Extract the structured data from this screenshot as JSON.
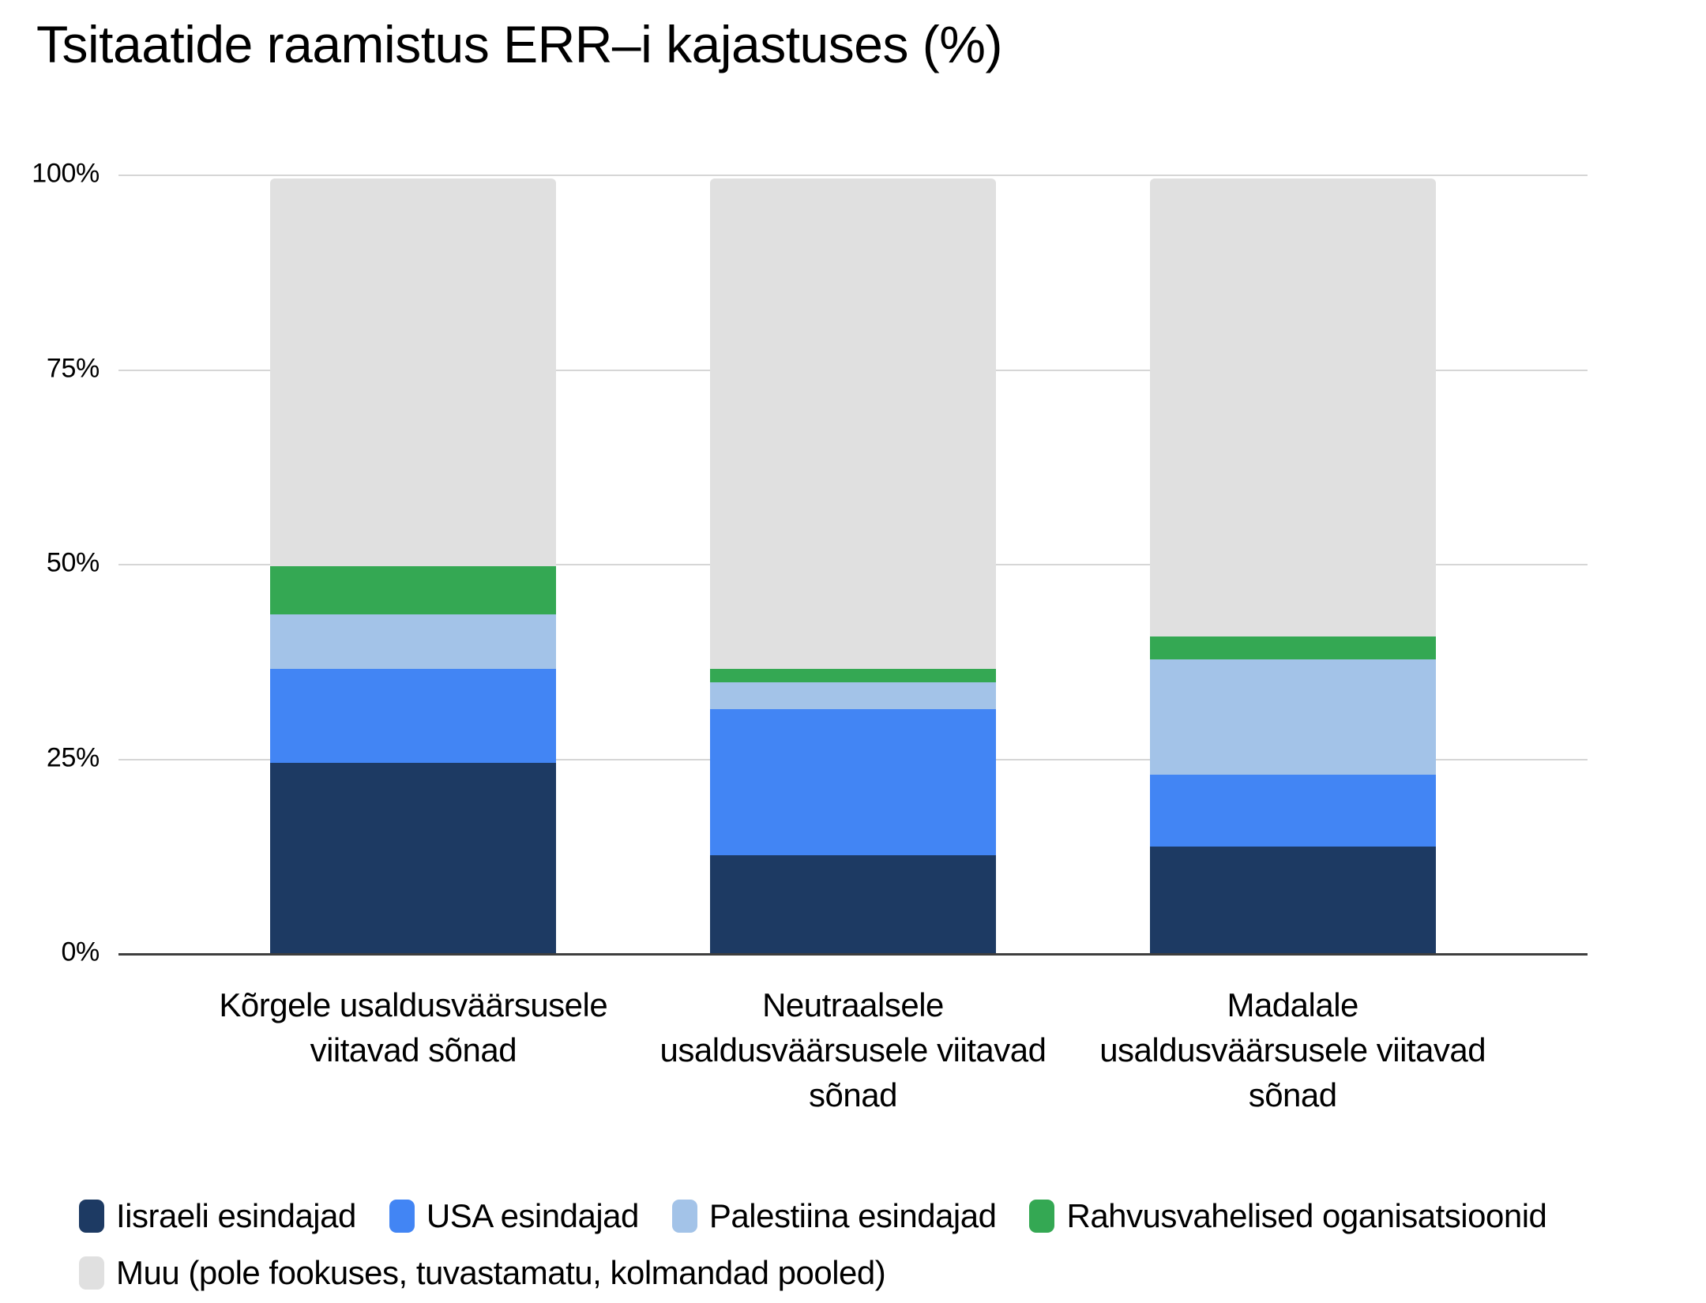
{
  "title": "Tsitaatide raamistus ERR–i kajastuses (%)",
  "colors": {
    "gridline": "#d6d6d6",
    "axis_line": "#3e3e3e",
    "background": "#ffffff",
    "text": "#000000"
  },
  "chart_data": {
    "type": "bar",
    "stacked": true,
    "unit": "%",
    "title": "Tsitaatide raamistus ERR–i kajastuses (%)",
    "xlabel": "",
    "ylabel": "",
    "ylim": [
      0,
      100
    ],
    "grid": true,
    "legend_position": "bottom",
    "y_ticks": [
      {
        "label": "100%",
        "value": 100
      },
      {
        "label": "75%",
        "value": 75
      },
      {
        "label": "50%",
        "value": 50
      },
      {
        "label": "25%",
        "value": 25
      },
      {
        "label": "0%",
        "value": 0
      }
    ],
    "categories": [
      "Kõrgele usaldusväärsusele viitavad sõnad",
      "Neutraalsele usaldusväärsusele viitavad sõnad",
      "Madalale usaldusväärsusele viitavad sõnad"
    ],
    "series": [
      {
        "name": "Iisraeli esindajad",
        "color": "#1d3a63",
        "values": [
          24.6,
          12.7,
          13.8
        ]
      },
      {
        "name": "USA esindajad",
        "color": "#4285f4",
        "values": [
          12.2,
          18.9,
          9.3
        ]
      },
      {
        "name": "Palestiina esindajad",
        "color": "#a3c3e8",
        "values": [
          7.0,
          3.4,
          14.9
        ]
      },
      {
        "name": "Rahvusvahelised oganisatsioonid",
        "color": "#34a853",
        "values": [
          6.2,
          1.8,
          2.9
        ]
      },
      {
        "name": "Muu (pole fookuses, tuvastamatu, kolmandad pooled)",
        "color": "#e0e0e0",
        "values": [
          50.0,
          63.2,
          59.1
        ]
      }
    ]
  }
}
